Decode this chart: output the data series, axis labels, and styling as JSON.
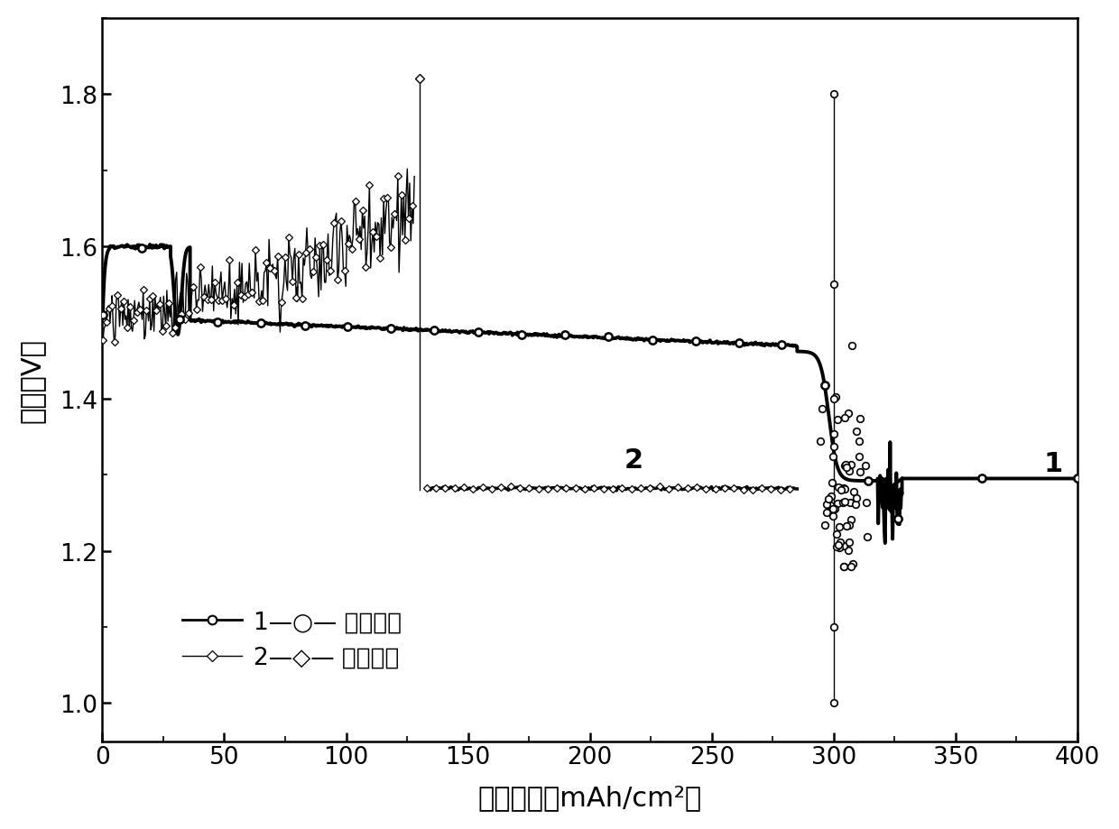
{
  "xlabel": "充电容量（mAh/cm²）",
  "ylabel": "电压（V）",
  "xlim": [
    0,
    400
  ],
  "ylim": [
    0.95,
    1.9
  ],
  "xticks": [
    0,
    50,
    100,
    150,
    200,
    250,
    300,
    350,
    400
  ],
  "yticks": [
    1.0,
    1.2,
    1.4,
    1.6,
    1.8
  ],
  "label1": "1—○— 梯度电极",
  "label2": "2—◇— 传统电极",
  "ann1_x": 390,
  "ann1_y": 1.315,
  "ann2_x": 218,
  "ann2_y": 1.32,
  "bg_color": "#ffffff"
}
